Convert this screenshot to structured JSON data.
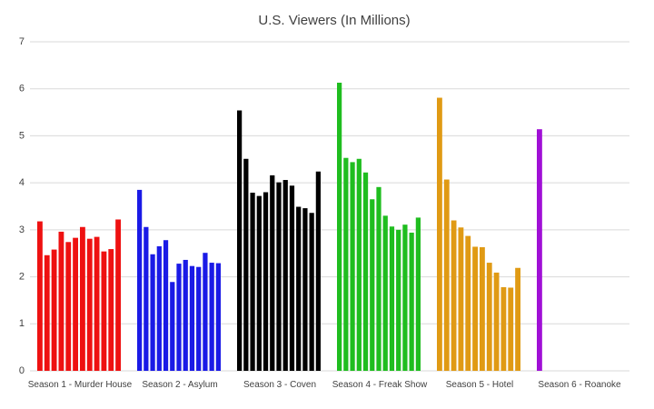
{
  "chart_data": {
    "type": "bar",
    "title": "U.S. Viewers (In Millions)",
    "xlabel": "",
    "ylabel": "",
    "ylim": [
      0,
      7
    ],
    "yticks": [
      0,
      1,
      2,
      3,
      4,
      5,
      6,
      7
    ],
    "grid": true,
    "legend": "none",
    "groups": [
      {
        "label": "Season 1 - Murder House",
        "color": "#ee1111",
        "values": [
          3.18,
          2.46,
          2.58,
          2.96,
          2.74,
          2.83,
          3.06,
          2.81,
          2.85,
          2.54,
          2.59,
          3.22
        ]
      },
      {
        "label": "Season 2 - Asylum",
        "color": "#1a1ae6",
        "values": [
          3.85,
          3.06,
          2.48,
          2.65,
          2.78,
          1.89,
          2.28,
          2.36,
          2.23,
          2.21,
          2.51,
          2.3,
          2.29
        ]
      },
      {
        "label": "Season 3 - Coven",
        "color": "#000000",
        "values": [
          5.54,
          4.51,
          3.79,
          3.72,
          3.8,
          4.16,
          4.01,
          4.06,
          3.94,
          3.49,
          3.46,
          3.36,
          4.24
        ]
      },
      {
        "label": "Season 4 - Freak Show",
        "color": "#1fbd1f",
        "values": [
          6.13,
          4.53,
          4.44,
          4.51,
          4.22,
          3.65,
          3.91,
          3.3,
          3.07,
          3.0,
          3.11,
          2.94,
          3.26
        ]
      },
      {
        "label": "Season 5 - Hotel",
        "color": "#e09a14",
        "values": [
          5.81,
          4.07,
          3.2,
          3.05,
          2.87,
          2.64,
          2.63,
          2.3,
          2.09,
          1.78,
          1.77,
          2.19
        ]
      },
      {
        "label": "Season 6 - Roanoke",
        "color": "#a010d6",
        "values": [
          5.14
        ]
      }
    ]
  }
}
